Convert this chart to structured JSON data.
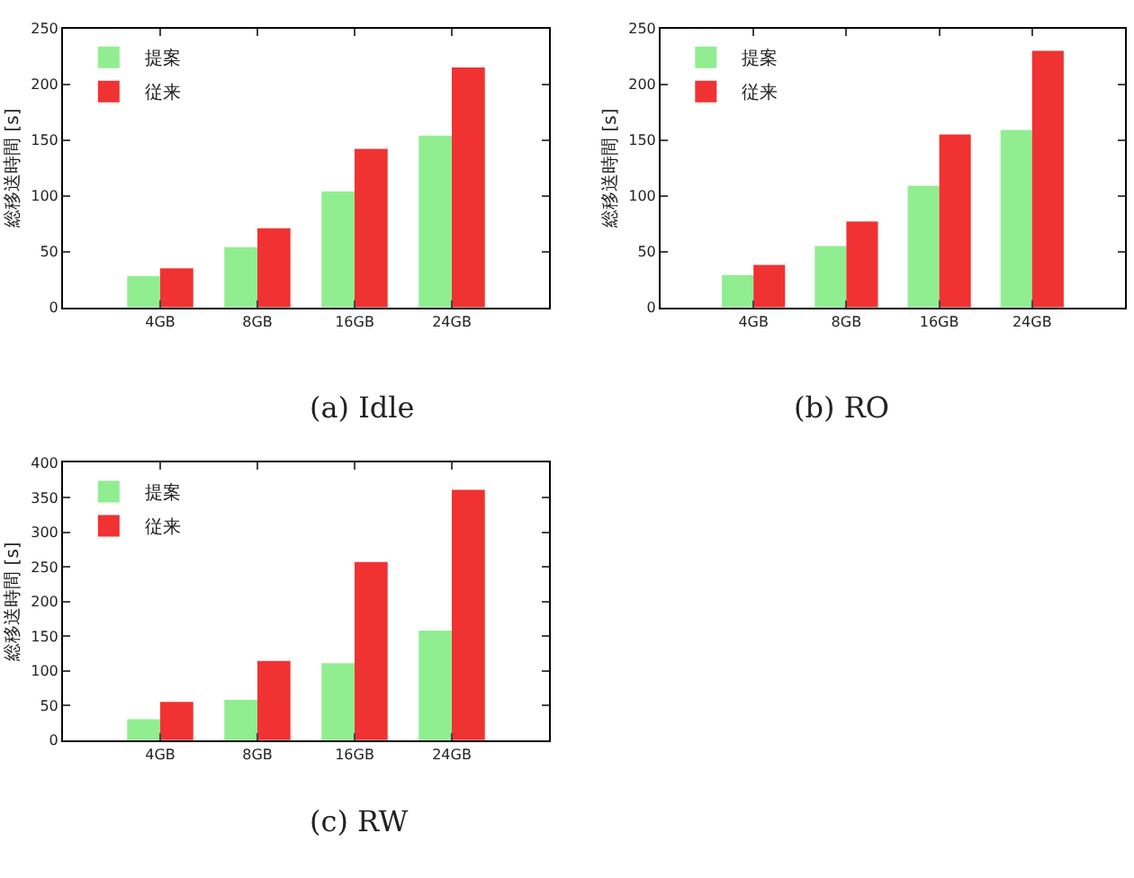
{
  "chart_data": [
    {
      "type": "bar",
      "title": "(a) Idle",
      "ylabel": "総移送時間 [s]",
      "categories": [
        "4GB",
        "8GB",
        "16GB",
        "24GB"
      ],
      "ylim": [
        0,
        250
      ],
      "yticks": [
        0,
        50,
        100,
        150,
        200,
        250
      ],
      "legend": "top left",
      "series": [
        {
          "name": "提案",
          "color": "#90ee90",
          "values": [
            28,
            54,
            104,
            154
          ]
        },
        {
          "name": "従来",
          "color": "#f03232",
          "values": [
            35,
            71,
            142,
            215
          ]
        }
      ]
    },
    {
      "type": "bar",
      "title": "(b) RO",
      "ylabel": "総移送時間 [s]",
      "categories": [
        "4GB",
        "8GB",
        "16GB",
        "24GB"
      ],
      "ylim": [
        0,
        250
      ],
      "yticks": [
        0,
        50,
        100,
        150,
        200,
        250
      ],
      "legend": "top left",
      "series": [
        {
          "name": "提案",
          "color": "#90ee90",
          "values": [
            29,
            55,
            109,
            159
          ]
        },
        {
          "name": "従来",
          "color": "#f03232",
          "values": [
            38,
            77,
            155,
            230
          ]
        }
      ]
    },
    {
      "type": "bar",
      "title": "(c) RW",
      "ylabel": "総移送時間 [s]",
      "categories": [
        "4GB",
        "8GB",
        "16GB",
        "24GB"
      ],
      "ylim": [
        0,
        400
      ],
      "yticks": [
        0,
        50,
        100,
        150,
        200,
        250,
        300,
        350,
        400
      ],
      "legend": "top left",
      "series": [
        {
          "name": "提案",
          "color": "#90ee90",
          "values": [
            30,
            58,
            111,
            158
          ]
        },
        {
          "name": "従来",
          "color": "#f03232",
          "values": [
            55,
            114,
            257,
            361
          ]
        }
      ]
    }
  ]
}
